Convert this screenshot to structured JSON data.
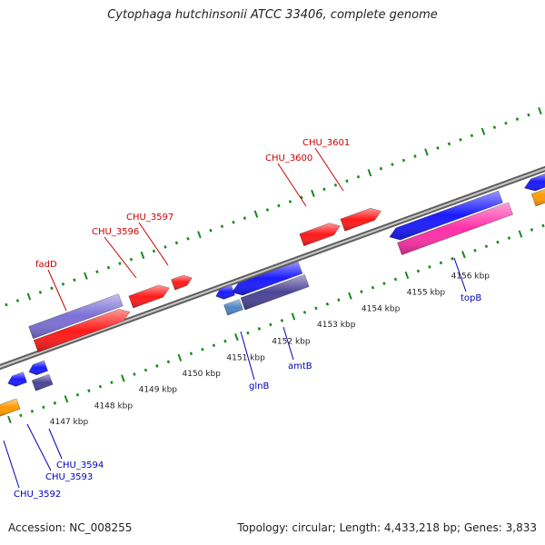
{
  "title": "Cytophaga hutchinsonii ATCC 33406, complete genome",
  "footer": {
    "accession": "Accession: NC_008255",
    "topology": "Topology: circular; Length: 4,433,218 bp; Genes: 3,833"
  },
  "colors": {
    "backbone": "#7a7a7a",
    "tick": "#1a8a1a",
    "label_forward": "#cc0000",
    "label_reverse": "#0000bb",
    "red": "#ff1a1a",
    "blue": "#1a1aff",
    "purple": "#7b6fd6",
    "darkpurple": "#4b4496",
    "pink": "#ff2fa8",
    "orange": "#ff9a00",
    "steel": "#4f86c6"
  },
  "scale": {
    "labels": [
      "4147 kbp",
      "4148 kbp",
      "4149 kbp",
      "4150 kbp",
      "4151 kbp",
      "4152 kbp",
      "4153 kbp",
      "4154 kbp",
      "4155 kbp",
      "4156 kbp"
    ]
  },
  "genes": {
    "forward_labels": [
      "fadD",
      "CHU_3596",
      "CHU_3597",
      "CHU_3600",
      "CHU_3601"
    ],
    "reverse_labels": [
      "CHU_3592",
      "CHU_3593",
      "CHU_3594",
      "glnB",
      "amtB",
      "topB"
    ]
  }
}
